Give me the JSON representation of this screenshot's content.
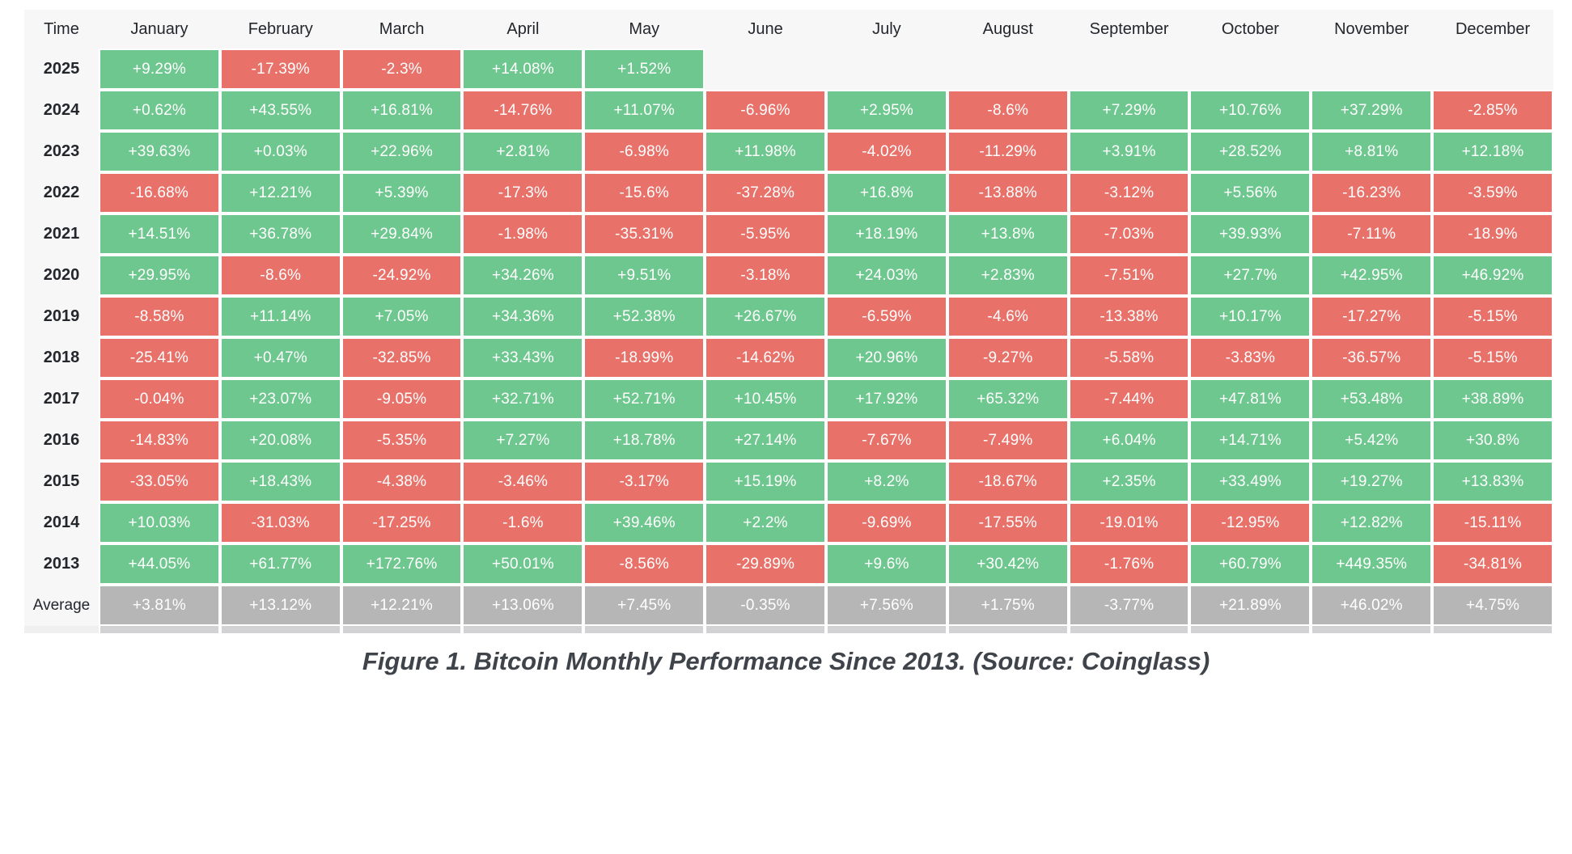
{
  "colors": {
    "positive": "#6ec78e",
    "negative": "#e8726a",
    "average": "#b6b6b6",
    "table_backdrop": "#f7f7f8",
    "cell_text": "#ffffff",
    "header_text": "#23262b"
  },
  "table": {
    "columns": [
      "Time",
      "January",
      "February",
      "March",
      "April",
      "May",
      "June",
      "July",
      "August",
      "September",
      "October",
      "November",
      "December"
    ],
    "rows": [
      {
        "label": "2025",
        "type": "year",
        "values": [
          "+9.29%",
          "-17.39%",
          "-2.3%",
          "+14.08%",
          "+1.52%",
          "",
          "",
          "",
          "",
          "",
          "",
          ""
        ]
      },
      {
        "label": "2024",
        "type": "year",
        "values": [
          "+0.62%",
          "+43.55%",
          "+16.81%",
          "-14.76%",
          "+11.07%",
          "-6.96%",
          "+2.95%",
          "-8.6%",
          "+7.29%",
          "+10.76%",
          "+37.29%",
          "-2.85%"
        ]
      },
      {
        "label": "2023",
        "type": "year",
        "values": [
          "+39.63%",
          "+0.03%",
          "+22.96%",
          "+2.81%",
          "-6.98%",
          "+11.98%",
          "-4.02%",
          "-11.29%",
          "+3.91%",
          "+28.52%",
          "+8.81%",
          "+12.18%"
        ]
      },
      {
        "label": "2022",
        "type": "year",
        "values": [
          "-16.68%",
          "+12.21%",
          "+5.39%",
          "-17.3%",
          "-15.6%",
          "-37.28%",
          "+16.8%",
          "-13.88%",
          "-3.12%",
          "+5.56%",
          "-16.23%",
          "-3.59%"
        ]
      },
      {
        "label": "2021",
        "type": "year",
        "values": [
          "+14.51%",
          "+36.78%",
          "+29.84%",
          "-1.98%",
          "-35.31%",
          "-5.95%",
          "+18.19%",
          "+13.8%",
          "-7.03%",
          "+39.93%",
          "-7.11%",
          "-18.9%"
        ]
      },
      {
        "label": "2020",
        "type": "year",
        "values": [
          "+29.95%",
          "-8.6%",
          "-24.92%",
          "+34.26%",
          "+9.51%",
          "-3.18%",
          "+24.03%",
          "+2.83%",
          "-7.51%",
          "+27.7%",
          "+42.95%",
          "+46.92%"
        ]
      },
      {
        "label": "2019",
        "type": "year",
        "values": [
          "-8.58%",
          "+11.14%",
          "+7.05%",
          "+34.36%",
          "+52.38%",
          "+26.67%",
          "-6.59%",
          "-4.6%",
          "-13.38%",
          "+10.17%",
          "-17.27%",
          "-5.15%"
        ]
      },
      {
        "label": "2018",
        "type": "year",
        "values": [
          "-25.41%",
          "+0.47%",
          "-32.85%",
          "+33.43%",
          "-18.99%",
          "-14.62%",
          "+20.96%",
          "-9.27%",
          "-5.58%",
          "-3.83%",
          "-36.57%",
          "-5.15%"
        ]
      },
      {
        "label": "2017",
        "type": "year",
        "values": [
          "-0.04%",
          "+23.07%",
          "-9.05%",
          "+32.71%",
          "+52.71%",
          "+10.45%",
          "+17.92%",
          "+65.32%",
          "-7.44%",
          "+47.81%",
          "+53.48%",
          "+38.89%"
        ]
      },
      {
        "label": "2016",
        "type": "year",
        "values": [
          "-14.83%",
          "+20.08%",
          "-5.35%",
          "+7.27%",
          "+18.78%",
          "+27.14%",
          "-7.67%",
          "-7.49%",
          "+6.04%",
          "+14.71%",
          "+5.42%",
          "+30.8%"
        ]
      },
      {
        "label": "2015",
        "type": "year",
        "values": [
          "-33.05%",
          "+18.43%",
          "-4.38%",
          "-3.46%",
          "-3.17%",
          "+15.19%",
          "+8.2%",
          "-18.67%",
          "+2.35%",
          "+33.49%",
          "+19.27%",
          "+13.83%"
        ]
      },
      {
        "label": "2014",
        "type": "year",
        "values": [
          "+10.03%",
          "-31.03%",
          "-17.25%",
          "-1.6%",
          "+39.46%",
          "+2.2%",
          "-9.69%",
          "-17.55%",
          "-19.01%",
          "-12.95%",
          "+12.82%",
          "-15.11%"
        ]
      },
      {
        "label": "2013",
        "type": "year",
        "values": [
          "+44.05%",
          "+61.77%",
          "+172.76%",
          "+50.01%",
          "-8.56%",
          "-29.89%",
          "+9.6%",
          "+30.42%",
          "-1.76%",
          "+60.79%",
          "+449.35%",
          "-34.81%"
        ]
      },
      {
        "label": "Average",
        "type": "average",
        "values": [
          "+3.81%",
          "+13.12%",
          "+12.21%",
          "+13.06%",
          "+7.45%",
          "-0.35%",
          "+7.56%",
          "+1.75%",
          "-3.77%",
          "+21.89%",
          "+46.02%",
          "+4.75%"
        ]
      }
    ]
  },
  "caption": "Figure 1. Bitcoin Monthly Performance Since 2013. (Source: Coinglass)",
  "chart_data": {
    "type": "heatmap",
    "title": "Figure 1. Bitcoin Monthly Performance Since 2013. (Source: Coinglass)",
    "x": [
      "January",
      "February",
      "March",
      "April",
      "May",
      "June",
      "July",
      "August",
      "September",
      "October",
      "November",
      "December"
    ],
    "y": [
      "2025",
      "2024",
      "2023",
      "2022",
      "2021",
      "2020",
      "2019",
      "2018",
      "2017",
      "2016",
      "2015",
      "2014",
      "2013",
      "Average"
    ],
    "unit": "%",
    "color_rule": "green if positive, red if negative, gray for Average row",
    "series": [
      {
        "name": "2025",
        "values": [
          9.29,
          -17.39,
          -2.3,
          14.08,
          1.52,
          null,
          null,
          null,
          null,
          null,
          null,
          null
        ]
      },
      {
        "name": "2024",
        "values": [
          0.62,
          43.55,
          16.81,
          -14.76,
          11.07,
          -6.96,
          2.95,
          -8.6,
          7.29,
          10.76,
          37.29,
          -2.85
        ]
      },
      {
        "name": "2023",
        "values": [
          39.63,
          0.03,
          22.96,
          2.81,
          -6.98,
          11.98,
          -4.02,
          -11.29,
          3.91,
          28.52,
          8.81,
          12.18
        ]
      },
      {
        "name": "2022",
        "values": [
          -16.68,
          12.21,
          5.39,
          -17.3,
          -15.6,
          -37.28,
          16.8,
          -13.88,
          -3.12,
          5.56,
          -16.23,
          -3.59
        ]
      },
      {
        "name": "2021",
        "values": [
          14.51,
          36.78,
          29.84,
          -1.98,
          -35.31,
          -5.95,
          18.19,
          13.8,
          -7.03,
          39.93,
          -7.11,
          -18.9
        ]
      },
      {
        "name": "2020",
        "values": [
          29.95,
          -8.6,
          -24.92,
          34.26,
          9.51,
          -3.18,
          24.03,
          2.83,
          -7.51,
          27.7,
          42.95,
          46.92
        ]
      },
      {
        "name": "2019",
        "values": [
          -8.58,
          11.14,
          7.05,
          34.36,
          52.38,
          26.67,
          -6.59,
          -4.6,
          -13.38,
          10.17,
          -17.27,
          -5.15
        ]
      },
      {
        "name": "2018",
        "values": [
          -25.41,
          0.47,
          -32.85,
          33.43,
          -18.99,
          -14.62,
          20.96,
          -9.27,
          -5.58,
          -3.83,
          -36.57,
          -5.15
        ]
      },
      {
        "name": "2017",
        "values": [
          -0.04,
          23.07,
          -9.05,
          32.71,
          52.71,
          10.45,
          17.92,
          65.32,
          -7.44,
          47.81,
          53.48,
          38.89
        ]
      },
      {
        "name": "2016",
        "values": [
          -14.83,
          20.08,
          -5.35,
          7.27,
          18.78,
          27.14,
          -7.67,
          -7.49,
          6.04,
          14.71,
          5.42,
          30.8
        ]
      },
      {
        "name": "2015",
        "values": [
          -33.05,
          18.43,
          -4.38,
          -3.46,
          -3.17,
          15.19,
          8.2,
          -18.67,
          2.35,
          33.49,
          19.27,
          13.83
        ]
      },
      {
        "name": "2014",
        "values": [
          10.03,
          -31.03,
          -17.25,
          -1.6,
          39.46,
          2.2,
          -9.69,
          -17.55,
          -19.01,
          -12.95,
          12.82,
          -15.11
        ]
      },
      {
        "name": "2013",
        "values": [
          44.05,
          61.77,
          172.76,
          50.01,
          -8.56,
          -29.89,
          9.6,
          30.42,
          -1.76,
          60.79,
          449.35,
          -34.81
        ]
      },
      {
        "name": "Average",
        "values": [
          3.81,
          13.12,
          12.21,
          13.06,
          7.45,
          -0.35,
          7.56,
          1.75,
          -3.77,
          21.89,
          46.02,
          4.75
        ]
      }
    ]
  }
}
